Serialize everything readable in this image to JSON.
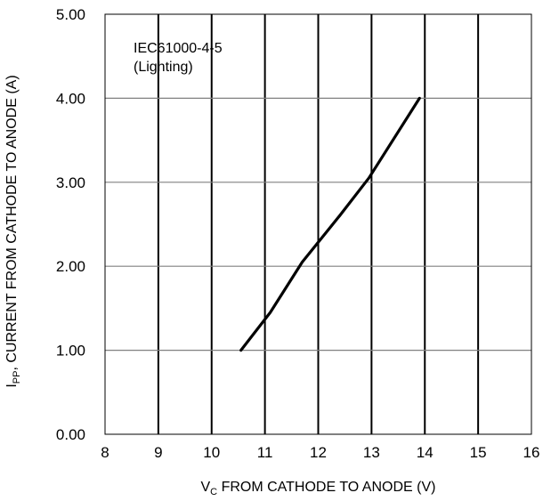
{
  "chart_data": {
    "type": "line",
    "annotation": [
      "IEC61000-4-5",
      "(Lighting)"
    ],
    "xlabel": {
      "main": "V",
      "sub": "C",
      "rest": " FROM CATHODE TO ANODE (V)"
    },
    "ylabel": {
      "main": "I",
      "sub": "PP",
      "rest": ", CURRENT FROM CATHODE TO ANODE (A)"
    },
    "xlim": [
      8,
      16
    ],
    "ylim": [
      0,
      5
    ],
    "x_ticks": [
      "8",
      "9",
      "10",
      "11",
      "12",
      "13",
      "14",
      "15",
      "16"
    ],
    "y_ticks": [
      "0.00",
      "1.00",
      "2.00",
      "3.00",
      "4.00",
      "5.00"
    ],
    "grid": {
      "horizontal": true,
      "vertical": true
    },
    "colors": {
      "line": "#000000",
      "grid_h": "#808080",
      "grid_v": "#000000",
      "frame": "#000000"
    },
    "series": [
      {
        "x": [
          10.55,
          11.1,
          11.7,
          12.4,
          12.95,
          13.9
        ],
        "y": [
          1.0,
          1.45,
          2.05,
          2.6,
          3.05,
          4.0
        ]
      }
    ]
  }
}
